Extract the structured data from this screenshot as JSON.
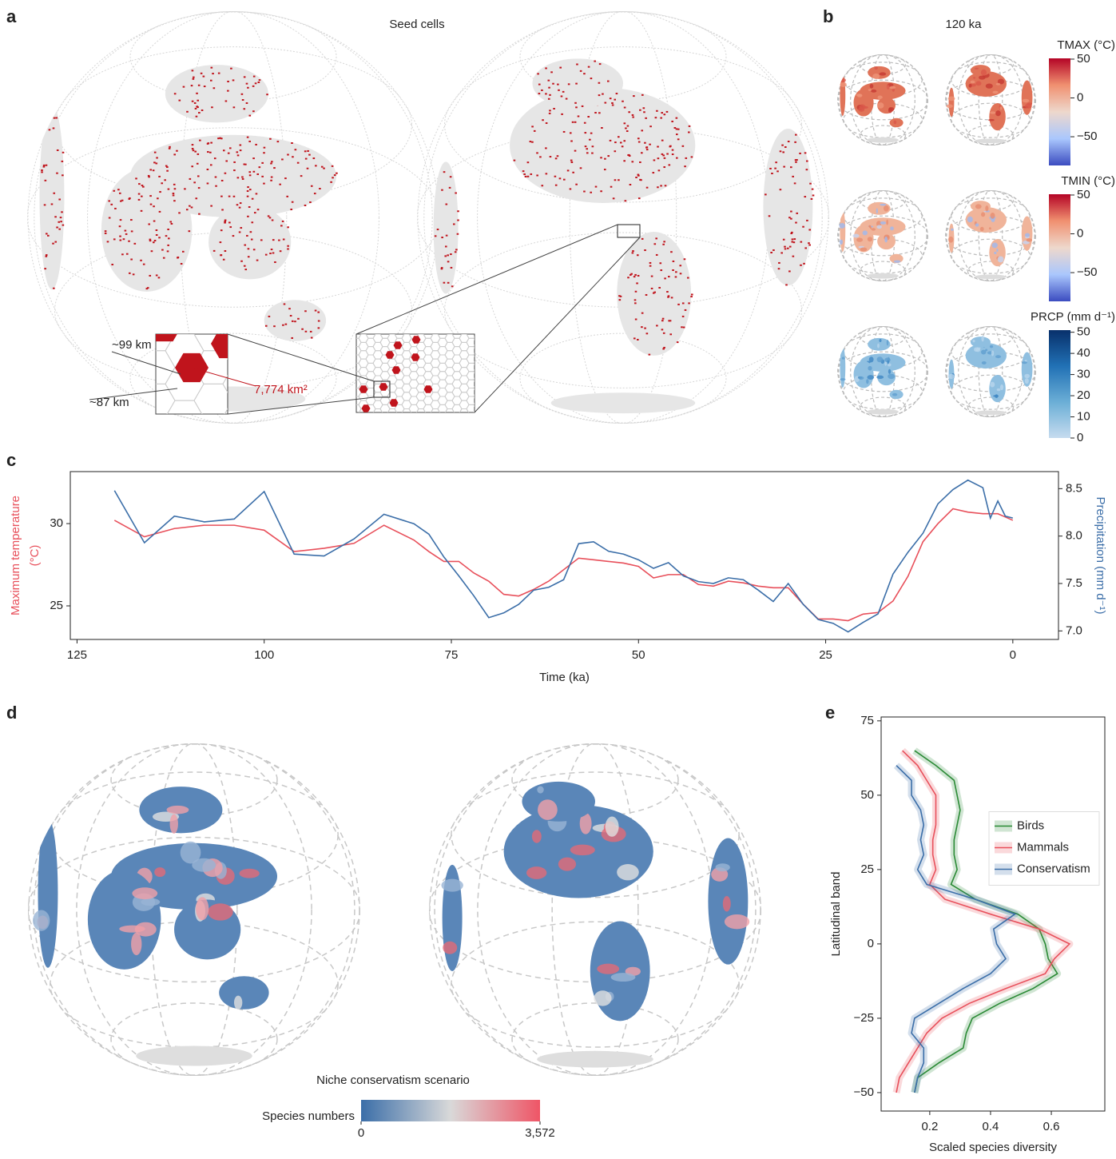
{
  "panel_labels": [
    "a",
    "b",
    "c",
    "d",
    "e"
  ],
  "panel_a": {
    "title": "Seed cells",
    "inset_labels": [
      "~99 km",
      "~87 km"
    ],
    "area_label": "7,774 km²"
  },
  "panel_b": {
    "title": "120 ka",
    "colorbars": [
      {
        "title": "TMAX (°C)",
        "lim": [
          -87,
          51
        ],
        "ticks": [
          50,
          0,
          {
            "value": -50,
            "label": "−50"
          }
        ],
        "colors": [
          "#3b4cc0",
          "#aac7fd",
          "#eed8cc",
          "#f09070",
          "#b40426"
        ]
      },
      {
        "title": "TMIN (°C)",
        "lim": [
          -87,
          51
        ],
        "ticks": [
          50,
          0,
          {
            "value": -50,
            "label": "−50"
          }
        ],
        "colors": [
          "#3b4cc0",
          "#aac7fd",
          "#eed8cc",
          "#f09070",
          "#b40426"
        ]
      },
      {
        "title": "PRCP (mm d⁻¹)",
        "lim": [
          0,
          51
        ],
        "ticks": [
          50,
          40,
          30,
          20,
          10,
          0
        ],
        "colors": [
          "#c6dbef",
          "#6baed6",
          "#2171b5",
          "#08306b"
        ]
      }
    ]
  },
  "chart_data": [
    {
      "type": "line",
      "x_label": "Time (ka)",
      "y_label": [
        "Maximum temperature",
        "(°C)"
      ],
      "y2_label": "Precipitation (mm d⁻¹)",
      "x": [
        120,
        116,
        112,
        108,
        104,
        100,
        96,
        92,
        88,
        84,
        80,
        78,
        76,
        74,
        72,
        70,
        68,
        66,
        64,
        62,
        60,
        58,
        56,
        54,
        52,
        50,
        48,
        46,
        44,
        42,
        40,
        38,
        36,
        34,
        32,
        30,
        28,
        26,
        24,
        22,
        20,
        18,
        16,
        14,
        12,
        10,
        8,
        6,
        4,
        3,
        2,
        1,
        0
      ],
      "xlim": [
        125.9,
        -6.1
      ],
      "xticks": [
        125,
        100,
        75,
        50,
        25,
        0
      ],
      "ylim": [
        22.96,
        33.16
      ],
      "yticks": [
        25,
        30
      ],
      "y2lim": [
        6.91,
        8.68
      ],
      "y2ticks": [
        {
          "value": 7,
          "label": "7.0"
        },
        7.5,
        {
          "value": 8,
          "label": "8.0"
        },
        8.5
      ],
      "series": [
        {
          "color": "#e8505b",
          "values": [
            30.2,
            29.2,
            29.7,
            29.9,
            29.9,
            29.6,
            28.3,
            28.5,
            28.8,
            29.9,
            29.0,
            28.3,
            27.7,
            27.7,
            27.0,
            26.5,
            25.7,
            25.6,
            26.0,
            26.5,
            27.2,
            27.9,
            27.8,
            27.7,
            27.6,
            27.4,
            26.7,
            26.9,
            26.9,
            26.3,
            26.2,
            26.5,
            26.4,
            26.2,
            26.1,
            26.1,
            25.1,
            24.2,
            24.2,
            24.1,
            24.5,
            24.6,
            25.3,
            26.8,
            28.9,
            30.0,
            30.9,
            30.7,
            30.6,
            30.6,
            30.6,
            30.4,
            30.2
          ]
        },
        {
          "color": "#3b6ea8",
          "axis": "y2",
          "values": [
            8.48,
            7.93,
            8.21,
            8.15,
            8.18,
            8.47,
            7.81,
            7.79,
            7.97,
            8.23,
            8.13,
            8.02,
            7.78,
            7.58,
            7.37,
            7.14,
            7.19,
            7.28,
            7.43,
            7.46,
            7.54,
            7.92,
            7.94,
            7.84,
            7.81,
            7.75,
            7.66,
            7.72,
            7.58,
            7.52,
            7.5,
            7.56,
            7.54,
            7.43,
            7.31,
            7.5,
            7.28,
            7.12,
            7.08,
            6.99,
            7.09,
            7.18,
            7.6,
            7.83,
            8.03,
            8.34,
            8.49,
            8.59,
            8.51,
            8.19,
            8.37,
            8.21,
            8.19
          ]
        }
      ]
    },
    {
      "type": "line",
      "orientation": "horizontal",
      "x_label": "Scaled species diversity",
      "y_label": "Latitudinal band",
      "y": [
        65,
        60,
        55,
        50,
        45,
        40,
        35,
        30,
        25,
        20,
        15,
        10,
        5,
        0,
        -5,
        -10,
        -15,
        -20,
        -25,
        -30,
        -35,
        -40,
        -45,
        -50
      ],
      "xlim": [
        0.04,
        0.776
      ],
      "xticks": [
        0.2,
        0.4,
        0.6
      ],
      "ylim": [
        -56.2,
        76.3
      ],
      "yticks": [
        {
          "value": -50,
          "label": "−50"
        },
        {
          "value": -25,
          "label": "−25"
        },
        0,
        25,
        50,
        75
      ],
      "legend": "center right",
      "series": [
        {
          "name": "Birds",
          "color": "#2a8a35",
          "values": [
            0.15,
            0.22,
            0.28,
            0.29,
            0.3,
            0.29,
            0.28,
            0.28,
            0.29,
            0.27,
            0.35,
            0.49,
            0.56,
            0.58,
            0.59,
            0.62,
            0.54,
            0.43,
            0.34,
            0.32,
            0.31,
            0.23,
            0.16,
            0.15
          ]
        },
        {
          "name": "Mammals",
          "color": "#e8505b",
          "values": [
            0.11,
            0.16,
            0.19,
            0.22,
            0.22,
            0.22,
            0.21,
            0.21,
            0.22,
            0.2,
            0.25,
            0.4,
            0.56,
            0.66,
            0.61,
            0.58,
            0.45,
            0.33,
            0.24,
            0.19,
            0.16,
            0.13,
            0.1,
            0.09
          ]
        },
        {
          "name": "Conservatism",
          "color": "#3b6ea8",
          "values": [
            null,
            0.09,
            0.14,
            0.14,
            0.17,
            0.18,
            0.17,
            0.18,
            0.16,
            0.19,
            0.35,
            0.48,
            0.41,
            0.42,
            0.45,
            0.4,
            0.31,
            0.23,
            0.15,
            0.14,
            0.18,
            0.18,
            0.16,
            0.15
          ]
        }
      ]
    }
  ],
  "panel_d": {
    "title": "Niche conservatism scenario",
    "colorbar": {
      "title": "Species numbers",
      "lim": [
        0,
        3572
      ],
      "ticks": [
        0,
        {
          "value": 3572,
          "label": "3,572"
        }
      ],
      "colors": [
        "#3b6ea8",
        "#d9d9d9",
        "#ef5566"
      ]
    }
  }
}
